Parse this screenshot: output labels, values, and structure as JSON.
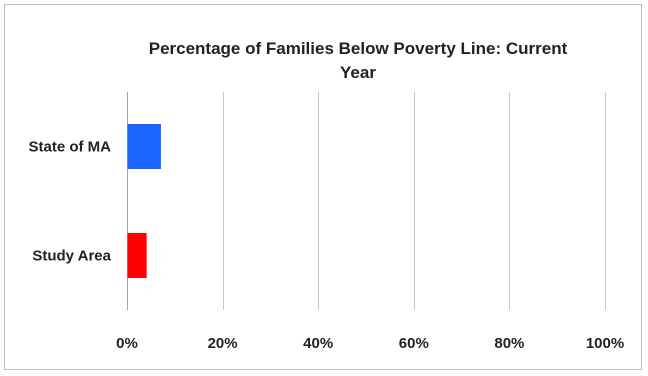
{
  "chart_data": {
    "type": "bar",
    "orientation": "horizontal",
    "title_lines": [
      "Percentage of Families Below Poverty Line: Current",
      "Year"
    ],
    "categories": [
      "State of MA",
      "Study Area"
    ],
    "values": [
      7,
      4
    ],
    "bar_colors": [
      "#1a66ff",
      "#ff0000"
    ],
    "xlim": [
      0,
      100
    ],
    "x_ticks": [
      0,
      20,
      40,
      60,
      80,
      100
    ],
    "x_tick_labels": [
      "0%",
      "20%",
      "40%",
      "60%",
      "80%",
      "100%"
    ],
    "x_unit": "%",
    "grid": "vertical",
    "legend": "none"
  }
}
